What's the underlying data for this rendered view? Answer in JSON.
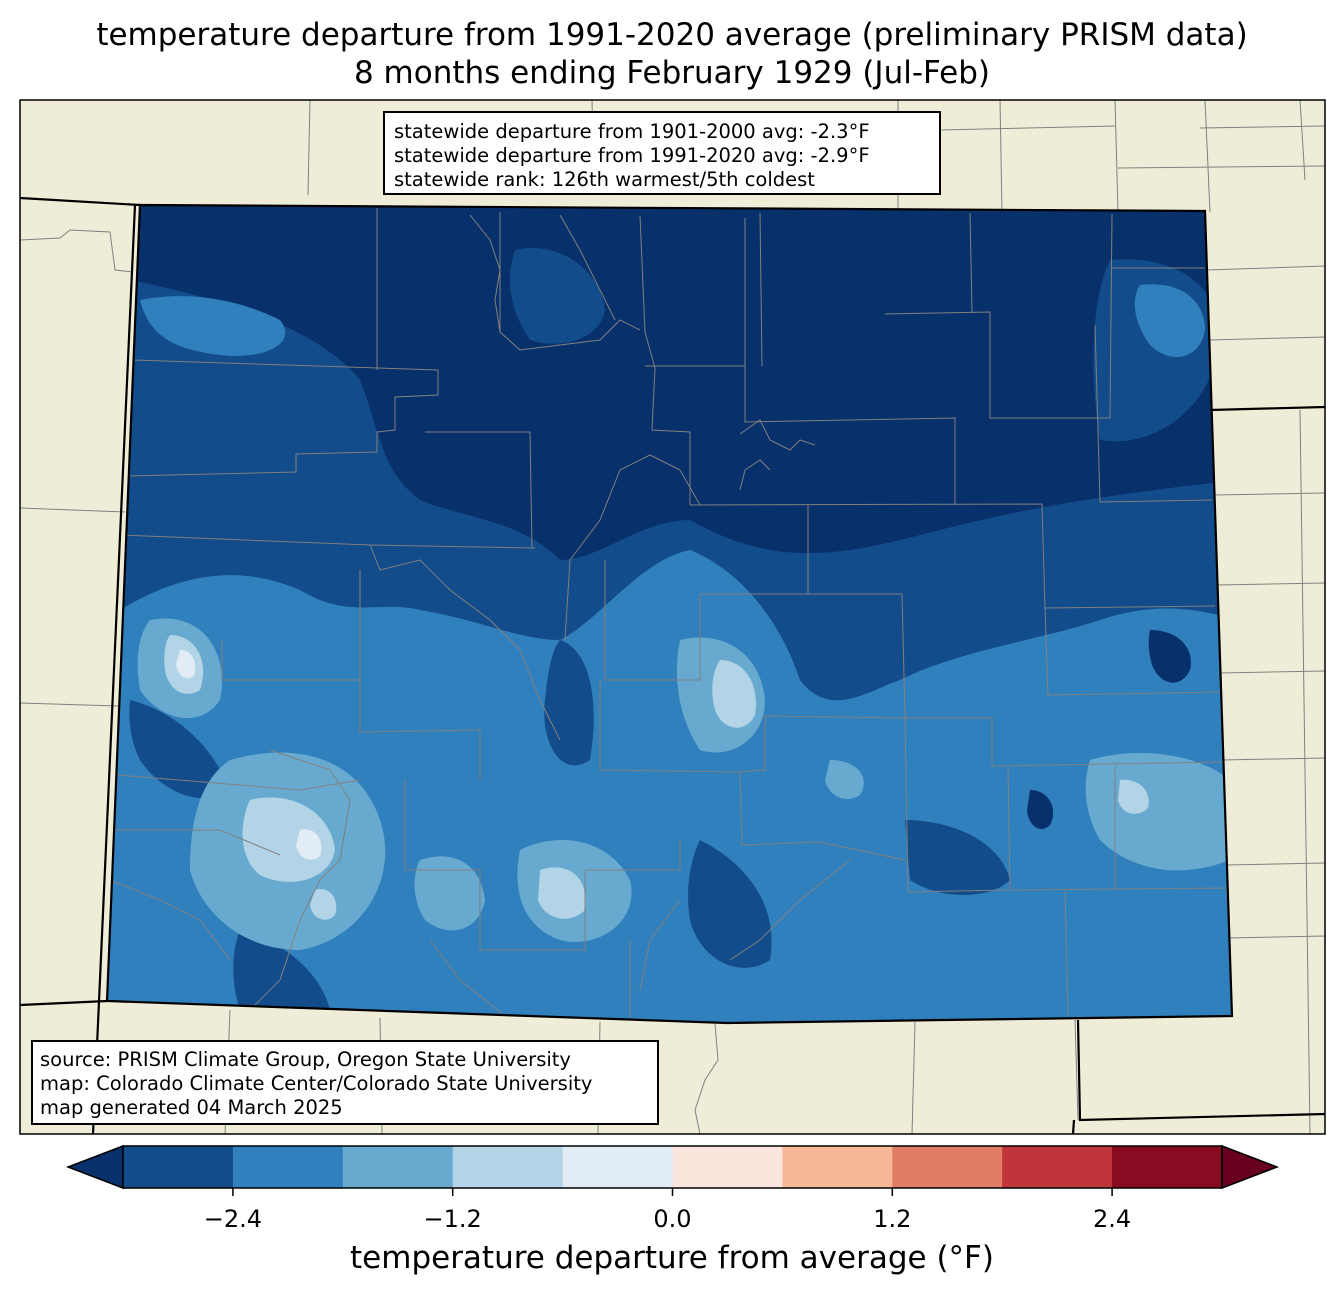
{
  "title": {
    "line1": "temperature departure from 1991-2020 average (preliminary PRISM data)",
    "line2": "8 months ending February 1929 (Jul-Feb)"
  },
  "stats": {
    "line1": "statewide departure from 1901-2000 avg: -2.3°F",
    "line2": "statewide departure from 1991-2020 avg: -2.9°F",
    "line3": "statewide rank: 126th warmest/5th coldest"
  },
  "source": {
    "line1": "source: PRISM Climate Group, Oregon State University",
    "line2": "map: Colorado Climate Center/Colorado State University",
    "line3": "map generated 04 March 2025"
  },
  "colorbar": {
    "label": "temperature departure from average (°F)",
    "ticks": [
      "−2.4",
      "−1.2",
      "0.0",
      "1.2",
      "2.4"
    ],
    "colors": [
      "#08306b",
      "#134c8a",
      "#3080bd",
      "#68aacf",
      "#b2d4e6",
      "#e2ecf4",
      "#fae6dc",
      "#f7b799",
      "#e17d64",
      "#c0343b",
      "#870c22",
      "#67001f"
    ]
  },
  "map_colors": {
    "background": "#efedd8",
    "state_border": "#000000",
    "county_border": "#808080"
  }
}
